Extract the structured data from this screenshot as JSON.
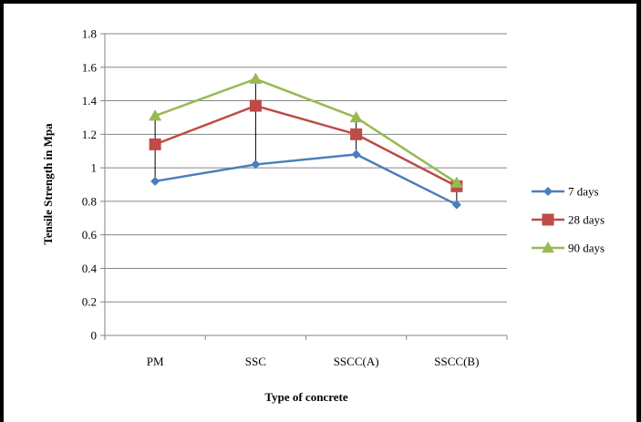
{
  "chart_data": {
    "type": "line",
    "xlabel": "Type of concrete",
    "ylabel": "Tensile Strength in Mpa",
    "categories": [
      "PM",
      "SSC",
      "SSCC(A)",
      "SSCC(B)"
    ],
    "ylim": [
      0,
      1.8
    ],
    "yticks": [
      "0",
      "0.2",
      "0.4",
      "0.6",
      "0.8",
      "1",
      "1.2",
      "1.4",
      "1.6",
      "1.8"
    ],
    "grid": true,
    "legend_position": "right",
    "series": [
      {
        "name": "7 days",
        "values": [
          0.92,
          1.02,
          1.08,
          0.78
        ],
        "color": "#4a7ebb",
        "marker": "diamond"
      },
      {
        "name": "28 days",
        "values": [
          1.14,
          1.37,
          1.2,
          0.89
        ],
        "color": "#be4b48",
        "marker": "square"
      },
      {
        "name": "90 days",
        "values": [
          1.31,
          1.53,
          1.3,
          0.91
        ],
        "color": "#98b954",
        "marker": "triangle"
      }
    ],
    "drop_lines": true
  }
}
